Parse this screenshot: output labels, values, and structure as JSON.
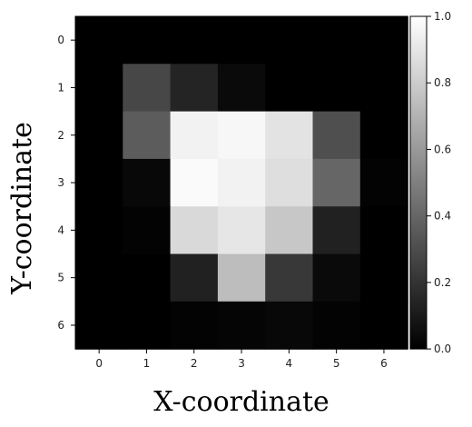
{
  "chart_data": {
    "type": "heatmap",
    "title": "",
    "xlabel": "X-coordinate",
    "ylabel": "Y-coordinate",
    "x": [
      0,
      1,
      2,
      3,
      4,
      5,
      6
    ],
    "y": [
      0,
      1,
      2,
      3,
      4,
      5,
      6
    ],
    "x_tick_labels": [
      "0",
      "1",
      "2",
      "3",
      "4",
      "5",
      "6"
    ],
    "y_tick_labels": [
      "0",
      "1",
      "2",
      "3",
      "4",
      "5",
      "6"
    ],
    "values": [
      [
        0.0,
        0.0,
        0.0,
        0.0,
        0.0,
        0.0,
        0.0
      ],
      [
        0.0,
        0.28,
        0.14,
        0.04,
        0.0,
        0.0,
        0.0
      ],
      [
        0.0,
        0.36,
        0.95,
        0.97,
        0.89,
        0.31,
        0.0
      ],
      [
        0.0,
        0.03,
        0.98,
        0.95,
        0.87,
        0.4,
        0.01
      ],
      [
        0.0,
        0.01,
        0.85,
        0.9,
        0.78,
        0.13,
        0.0
      ],
      [
        0.0,
        0.0,
        0.13,
        0.74,
        0.22,
        0.04,
        0.0
      ],
      [
        0.0,
        0.0,
        0.01,
        0.02,
        0.03,
        0.01,
        0.0
      ]
    ],
    "colormap": "gray",
    "colorbar": {
      "range": [
        0.0,
        1.0
      ],
      "ticks": [
        0.0,
        0.2,
        0.4,
        0.6,
        0.8,
        1.0
      ],
      "tick_labels": [
        "0.0",
        "0.2",
        "0.4",
        "0.6",
        "0.8",
        "1.0"
      ],
      "position": "right"
    },
    "grid": false
  }
}
